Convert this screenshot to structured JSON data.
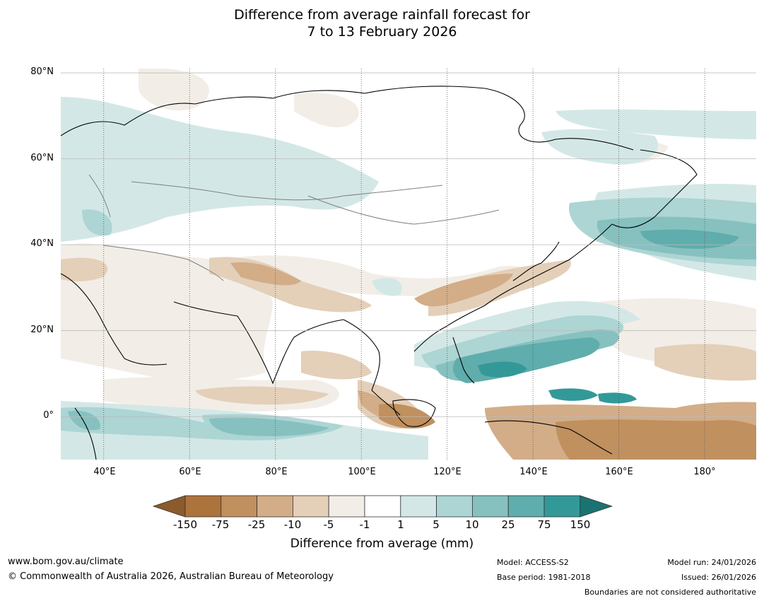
{
  "title": {
    "line1": "Difference from average rainfall forecast for",
    "line2": "7 to 13 February 2026"
  },
  "map": {
    "lat_labels": [
      "80°N",
      "60°N",
      "40°N",
      "20°N",
      "0°"
    ],
    "lon_labels": [
      "40°E",
      "60°E",
      "80°E",
      "100°E",
      "120°E",
      "140°E",
      "160°E",
      "180°"
    ],
    "lon_range": [
      30,
      192
    ],
    "lat_range": [
      -10,
      81
    ],
    "lons": [
      40,
      60,
      80,
      100,
      120,
      140,
      160,
      180
    ],
    "lats": [
      80,
      60,
      40,
      20,
      0
    ]
  },
  "legend": {
    "ticks": [
      "-150",
      "-75",
      "-25",
      "-10",
      "-5",
      "-1",
      "1",
      "5",
      "10",
      "25",
      "75",
      "150"
    ],
    "colors": [
      "#8c5a2b",
      "#ad733c",
      "#c0905f",
      "#d2ad88",
      "#e4cfb9",
      "#f2eee7",
      "#ffffff",
      "#d3e8e6",
      "#acd5d4",
      "#86c1c0",
      "#5fadac",
      "#339998",
      "#1a7373"
    ],
    "label": "Difference from average (mm)"
  },
  "footer": {
    "url": "www.bom.gov.au/climate",
    "copyright": "© Commonwealth of Australia 2026, Australian Bureau of Meteorology",
    "model": "Model: ACCESS-S2",
    "base_period": "Base period: 1981-2018",
    "model_run": "Model run: 24/01/2026",
    "issued": "Issued: 26/01/2026",
    "disclaimer": "Boundaries are not considered authoritative"
  }
}
